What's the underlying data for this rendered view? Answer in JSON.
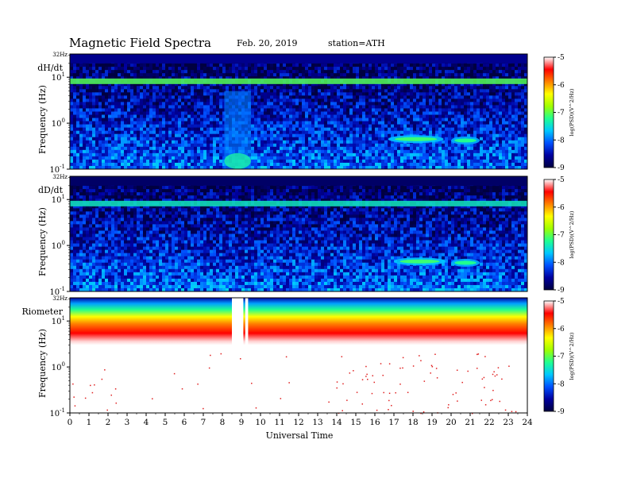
{
  "header": {
    "title": "Magnetic Field Spectra",
    "date": "Feb. 20, 2019",
    "station": "station=ATH"
  },
  "colors": {
    "colormap": [
      "#000040",
      "#0000a0",
      "#0050ff",
      "#00c8ff",
      "#20ff90",
      "#a0ff00",
      "#ffff00",
      "#ff8000",
      "#ff0000",
      "#ffffff"
    ],
    "background": "#ffffff"
  },
  "chart_data": [
    {
      "type": "heatmap",
      "panel_label": "dH/dt",
      "top_freq_label": "32Hz",
      "ylabel": "Frequency (Hz)",
      "y_scale": "log",
      "ylim": [
        0.1,
        32
      ],
      "y_ticks": [
        {
          "value": 0.1,
          "base": "10",
          "exp": "-1"
        },
        {
          "value": 1,
          "base": "10",
          "exp": "0"
        },
        {
          "value": 10,
          "base": "10",
          "exp": "1"
        }
      ],
      "xlim": [
        0,
        24
      ],
      "colorbar": {
        "label": "log(PSD)(V^2/Hz)",
        "ticks": [
          "-5",
          "-6",
          "-7",
          "-8",
          "-9"
        ],
        "range": [
          -9,
          -5
        ]
      },
      "features": [
        {
          "kind": "narrowband_line",
          "freq_hz": 8.0,
          "level": -6.8
        },
        {
          "kind": "high_freq_band",
          "freq_hz": [
            20,
            32
          ],
          "level": -8.6
        },
        {
          "kind": "broadband_event",
          "time_ut": [
            8.1,
            9.5
          ],
          "freq_hz": [
            0.1,
            5
          ],
          "level": -7.1
        },
        {
          "kind": "pc_pulsation",
          "time_ut": [
            16.7,
            19.6
          ],
          "freq_hz": 0.45,
          "level": -6.9
        },
        {
          "kind": "pc_pulsation",
          "time_ut": [
            20.0,
            21.5
          ],
          "freq_hz": 0.42,
          "level": -7.0
        }
      ]
    },
    {
      "type": "heatmap",
      "panel_label": "dD/dt",
      "top_freq_label": "32Hz",
      "ylabel": "Frequency (Hz)",
      "y_scale": "log",
      "ylim": [
        0.1,
        32
      ],
      "y_ticks": [
        {
          "value": 0.1,
          "base": "10",
          "exp": "-1"
        },
        {
          "value": 1,
          "base": "10",
          "exp": "0"
        },
        {
          "value": 10,
          "base": "10",
          "exp": "1"
        }
      ],
      "xlim": [
        0,
        24
      ],
      "colorbar": {
        "label": "log(PSD)(V^2/Hz)",
        "ticks": [
          "-5",
          "-6",
          "-7",
          "-8",
          "-9"
        ],
        "range": [
          -9,
          -5
        ]
      },
      "features": [
        {
          "kind": "narrowband_line",
          "freq_hz": 8.0,
          "level": -7.2
        },
        {
          "kind": "high_freq_band",
          "freq_hz": [
            20,
            32
          ],
          "level": -8.8
        },
        {
          "kind": "pc_pulsation",
          "time_ut": [
            17.0,
            19.7
          ],
          "freq_hz": 0.45,
          "level": -6.9
        },
        {
          "kind": "pc_pulsation",
          "time_ut": [
            20.0,
            21.5
          ],
          "freq_hz": 0.42,
          "level": -7.0
        }
      ]
    },
    {
      "type": "heatmap",
      "panel_label": "Riometer",
      "top_freq_label": "32Hz",
      "ylabel": "Frequency (Hz)",
      "y_scale": "log",
      "ylim": [
        0.1,
        32
      ],
      "y_ticks": [
        {
          "value": 0.1,
          "base": "10",
          "exp": "-1"
        },
        {
          "value": 1,
          "base": "10",
          "exp": "0"
        },
        {
          "value": 10,
          "base": "10",
          "exp": "1"
        }
      ],
      "xlim": [
        0,
        24
      ],
      "xlabel": "Universal Time",
      "x_ticks": [
        "0",
        "1",
        "2",
        "3",
        "4",
        "5",
        "6",
        "7",
        "8",
        "9",
        "10",
        "11",
        "12",
        "13",
        "14",
        "15",
        "16",
        "17",
        "18",
        "19",
        "20",
        "21",
        "22",
        "23",
        "24"
      ],
      "colorbar": {
        "label": "log(PSD)(V^2/Hz)",
        "ticks": [
          "-5",
          "-6",
          "-7",
          "-8",
          "-9"
        ],
        "range": [
          -9,
          -5
        ]
      },
      "features": [
        {
          "kind": "gradient_band",
          "freq_hz": [
            3,
            32
          ],
          "level_top": -8.5,
          "level_bottom": -6.0
        },
        {
          "kind": "data_gap",
          "time_ut": [
            8.5,
            9.1
          ]
        },
        {
          "kind": "data_gap",
          "time_ut": [
            9.2,
            9.35
          ]
        }
      ]
    }
  ]
}
